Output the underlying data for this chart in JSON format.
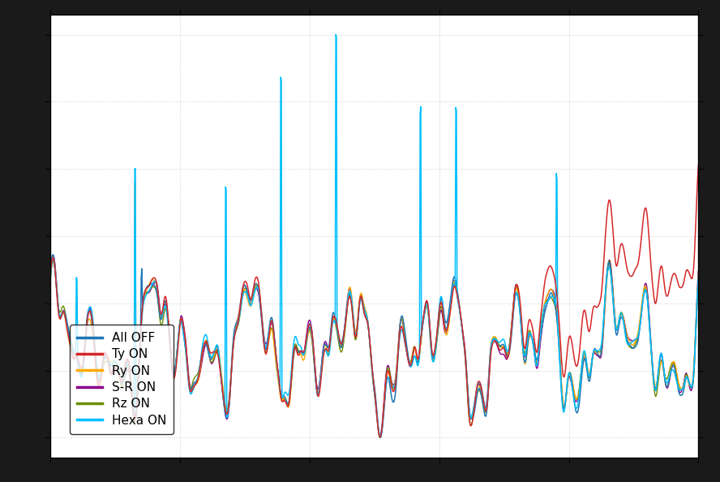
{
  "colors": {
    "All OFF": "#1f77b4",
    "Ty ON": "#d62728",
    "Ry ON": "#ffaa00",
    "S-R ON": "#8B008B",
    "Rz ON": "#6b8e00",
    "Hexa ON": "#00bfff"
  },
  "legend_labels": [
    "All OFF",
    "Ty ON",
    "Ry ON",
    "S-R ON",
    "Rz ON",
    "Hexa ON"
  ],
  "background_color": "#ffffff",
  "grid_color": "#bbbbbb",
  "n_points": 1000,
  "seed": 42
}
